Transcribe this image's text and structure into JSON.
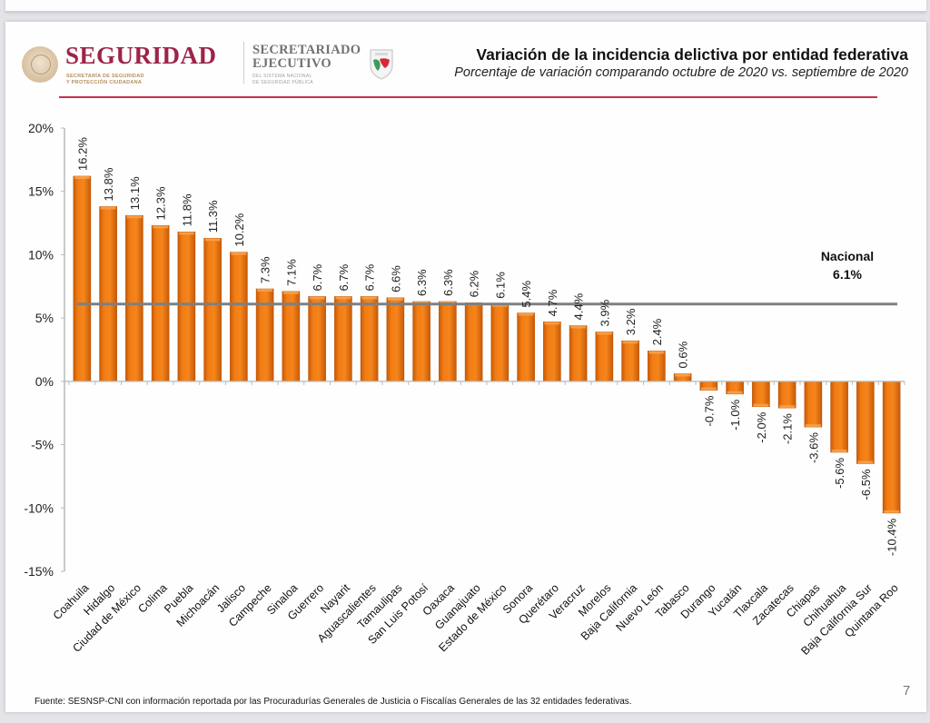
{
  "header": {
    "agency_name": "SEGURIDAD",
    "agency_sub_line1": "SECRETARÍA DE SEGURIDAD",
    "agency_sub_line2": "Y PROTECCIÓN CIUDADANA",
    "secretariat_line1": "SECRETARIADO",
    "secretariat_line2": "EJECUTIVO",
    "secretariat_sub_line1": "DEL SISTEMA NACIONAL",
    "secretariat_sub_line2": "DE SEGURIDAD PÚBLICA",
    "emblem_icon": "mexico-coat-of-arms-icon",
    "shield_icon": "sesnsp-shield-icon",
    "brand_color": "#9d2449",
    "accent_rule_color": "#c5304d"
  },
  "chart_data": {
    "type": "bar",
    "title": "Variación de la incidencia delictiva por entidad federativa",
    "subtitle": "Porcentaje de variación comparando octubre de 2020 vs. septiembre de 2020",
    "xlabel": "",
    "ylabel": "",
    "ylim": [
      -15,
      20
    ],
    "yticks": [
      20,
      15,
      10,
      5,
      0,
      -5,
      -10,
      -15
    ],
    "ytick_labels": [
      "20%",
      "15%",
      "10%",
      "5%",
      "0%",
      "-5%",
      "-10%",
      "-15%"
    ],
    "grid": false,
    "bar_color": "#f07a12",
    "categories": [
      "Coahuila",
      "Hidalgo",
      "Ciudad de México",
      "Colima",
      "Puebla",
      "Michoacán",
      "Jalisco",
      "Campeche",
      "Sinaloa",
      "Guerrero",
      "Nayarit",
      "Aguascalientes",
      "Tamaulipas",
      "San Luis Potosí",
      "Oaxaca",
      "Guanajuato",
      "Estado de México",
      "Sonora",
      "Querétaro",
      "Veracruz",
      "Morelos",
      "Baja California",
      "Nuevo León",
      "Tabasco",
      "Durango",
      "Yucatán",
      "Tlaxcala",
      "Zacatecas",
      "Chiapas",
      "Chihuahua",
      "Baja California Sur",
      "Quintana Roo"
    ],
    "values": [
      16.2,
      13.8,
      13.1,
      12.3,
      11.8,
      11.3,
      10.2,
      7.3,
      7.1,
      6.7,
      6.7,
      6.7,
      6.6,
      6.3,
      6.3,
      6.2,
      6.1,
      5.4,
      4.7,
      4.4,
      3.9,
      3.2,
      2.4,
      0.6,
      -0.7,
      -1.0,
      -2.0,
      -2.1,
      -3.6,
      -5.6,
      -6.5,
      -10.4
    ],
    "data_labels": [
      "16.2%",
      "13.8%",
      "13.1%",
      "12.3%",
      "11.8%",
      "11.3%",
      "10.2%",
      "7.3%",
      "7.1%",
      "6.7%",
      "6.7%",
      "6.7%",
      "6.6%",
      "6.3%",
      "6.3%",
      "6.2%",
      "6.1%",
      "5.4%",
      "4.7%",
      "4.4%",
      "3.9%",
      "3.2%",
      "2.4%",
      "0.6%",
      "-0.7%",
      "-1.0%",
      "-2.0%",
      "-2.1%",
      "-3.6%",
      "-5.6%",
      "-6.5%",
      "-10.4%"
    ],
    "reference_line": {
      "name": "Nacional",
      "value": 6.1,
      "label": "Nacional",
      "value_label": "6.1%",
      "color": "#7f7f7f"
    }
  },
  "footer": {
    "source": "Fuente: SESNSP-CNI con información reportada por las Procuradurías Generales de Justicia o Fiscalías Generales de las 32 entidades federativas.",
    "page_number": "7"
  }
}
